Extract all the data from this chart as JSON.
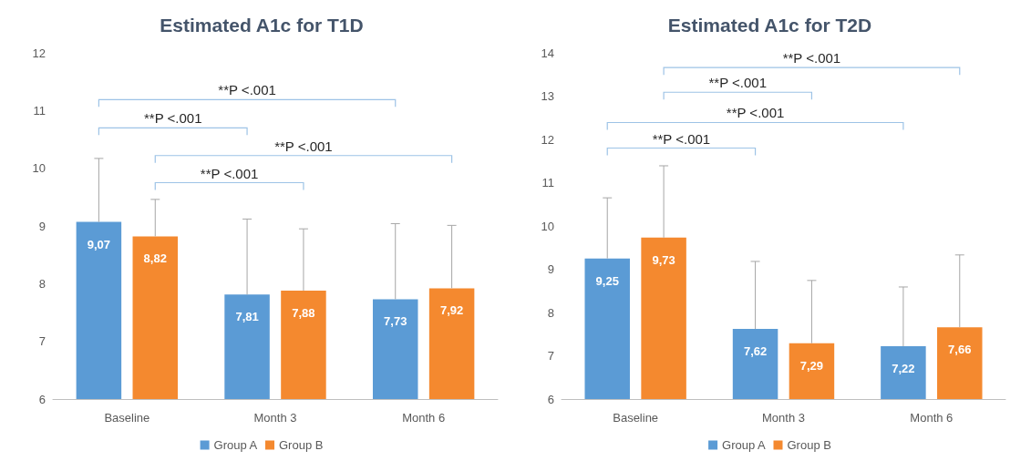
{
  "chart_data": [
    {
      "type": "bar",
      "title": "Estimated A1c for T1D",
      "categories": [
        "Baseline",
        "Month 3",
        "Month 6"
      ],
      "series": [
        {
          "name": "Group A",
          "color": "#5b9bd5",
          "values": [
            9.07,
            7.81,
            7.73
          ],
          "value_labels": [
            "9,07",
            "7,81",
            "7,73"
          ],
          "errors": [
            [
              9.07,
              10.17
            ],
            [
              7.81,
              9.12
            ],
            [
              7.73,
              9.04
            ]
          ]
        },
        {
          "name": "Group B",
          "color": "#f4892f",
          "values": [
            8.82,
            7.88,
            7.92
          ],
          "value_labels": [
            "8,82",
            "7,88",
            "7,92"
          ],
          "errors": [
            [
              8.82,
              9.46
            ],
            [
              7.88,
              8.95
            ],
            [
              7.92,
              9.01
            ]
          ]
        }
      ],
      "ylim": [
        6,
        12
      ],
      "yticks": [
        6,
        7,
        8,
        9,
        10,
        11,
        12
      ],
      "grid": false,
      "legend": "bottom",
      "annotations": [
        "**P <.001",
        "**P <.001",
        "**P <.001",
        "**P <.001"
      ]
    },
    {
      "type": "bar",
      "title": "Estimated A1c for T2D",
      "categories": [
        "Baseline",
        "Month 3",
        "Month 6"
      ],
      "series": [
        {
          "name": "Group A",
          "color": "#5b9bd5",
          "values": [
            9.25,
            7.62,
            7.22
          ],
          "value_labels": [
            "9,25",
            "7,62",
            "7,22"
          ],
          "errors": [
            [
              9.25,
              10.65
            ],
            [
              7.62,
              9.18
            ],
            [
              7.22,
              8.59
            ]
          ]
        },
        {
          "name": "Group B",
          "color": "#f4892f",
          "values": [
            9.73,
            7.29,
            7.66
          ],
          "value_labels": [
            "9,73",
            "7,29",
            "7,66"
          ],
          "errors": [
            [
              9.73,
              11.39
            ],
            [
              7.29,
              8.74
            ],
            [
              7.66,
              9.33
            ]
          ]
        }
      ],
      "ylim": [
        6,
        14
      ],
      "yticks": [
        6,
        7,
        8,
        9,
        10,
        11,
        12,
        13,
        14
      ],
      "grid": false,
      "legend": "bottom",
      "annotations": [
        "**P <.001",
        "**P <.001",
        "**P <.001",
        "**P <.001"
      ]
    }
  ]
}
